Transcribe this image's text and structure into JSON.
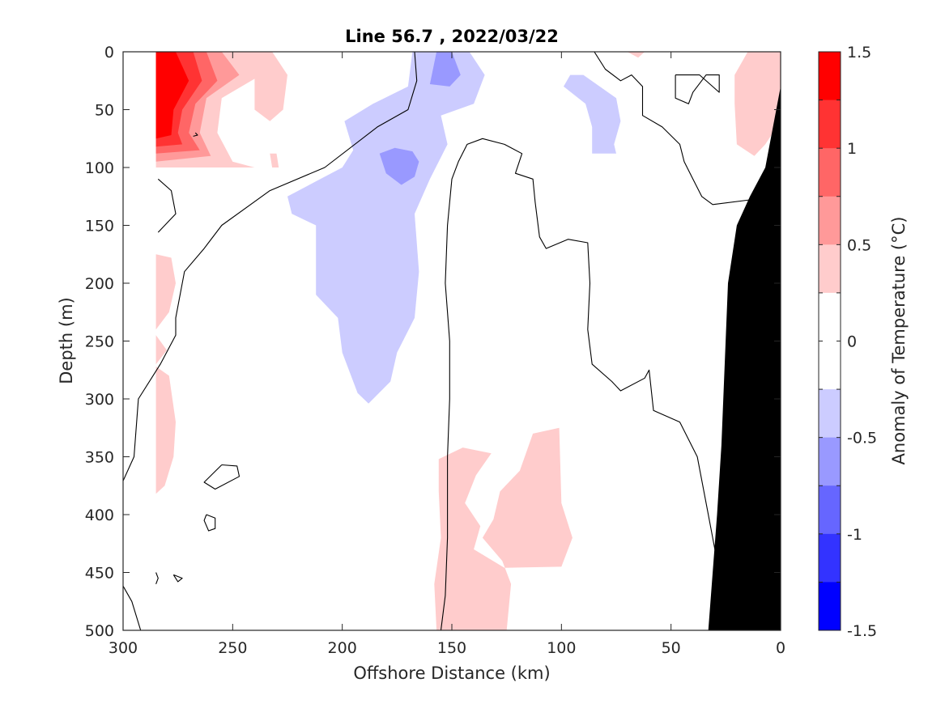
{
  "chart_data": {
    "type": "contour",
    "title": "Line 56.7 , 2022/03/22",
    "xlabel": "Offshore Distance (km)",
    "ylabel": "Depth (m)",
    "xlim": [
      300,
      0
    ],
    "ylim": [
      500,
      0
    ],
    "x_reversed": true,
    "y_reversed": true,
    "xticks": [
      300,
      250,
      200,
      150,
      100,
      50,
      0
    ],
    "yticks": [
      0,
      50,
      100,
      150,
      200,
      250,
      300,
      350,
      400,
      450,
      500
    ],
    "colorbar": {
      "label": "Anomaly of Temperature (°C)",
      "range": [
        -1.5,
        1.5
      ],
      "ticks": [
        1.5,
        1,
        0.5,
        0,
        -0.5,
        -1,
        -1.5
      ],
      "levels": [
        1.5,
        1.25,
        1.0,
        0.75,
        0.5,
        0.25,
        0.0,
        -0.25,
        -0.5,
        -0.75,
        -1.0,
        -1.25,
        -1.5
      ],
      "colors": [
        "#ff0000",
        "#ff3333",
        "#ff6666",
        "#ff9999",
        "#ffcccc",
        "#ffffff",
        "#ffffff",
        "#ccccff",
        "#9999ff",
        "#6666ff",
        "#3333ff",
        "#0000ff"
      ]
    },
    "filled_regions": [
      {
        "name": "warm core 0-100m",
        "anomaly_min": 0.25,
        "points": [
          [
            285,
            0
          ],
          [
            240,
            0
          ],
          [
            237,
            20
          ],
          [
            255,
            40
          ],
          [
            257,
            70
          ],
          [
            250,
            95
          ],
          [
            240,
            100
          ],
          [
            285,
            100
          ]
        ]
      },
      {
        "name": "warm core 0-100m",
        "anomaly_min": 0.5,
        "points": [
          [
            285,
            0
          ],
          [
            255,
            0
          ],
          [
            247,
            20
          ],
          [
            262,
            40
          ],
          [
            265,
            70
          ],
          [
            260,
            90
          ],
          [
            285,
            95
          ]
        ]
      },
      {
        "name": "warm core 0-100m",
        "anomaly_min": 0.75,
        "points": [
          [
            285,
            0
          ],
          [
            262,
            0
          ],
          [
            257,
            25
          ],
          [
            267,
            45
          ],
          [
            270,
            70
          ],
          [
            265,
            85
          ],
          [
            285,
            88
          ]
        ]
      },
      {
        "name": "warm core 0-100m",
        "anomaly_min": 1.0,
        "points": [
          [
            285,
            0
          ],
          [
            268,
            0
          ],
          [
            264,
            25
          ],
          [
            273,
            50
          ],
          [
            275,
            70
          ],
          [
            273,
            80
          ],
          [
            285,
            82
          ]
        ]
      },
      {
        "name": "warm core 0-100m",
        "anomaly_min": 1.25,
        "points": [
          [
            285,
            0
          ],
          [
            276,
            0
          ],
          [
            270,
            25
          ],
          [
            277,
            50
          ],
          [
            278,
            72
          ],
          [
            285,
            75
          ]
        ]
      },
      {
        "name": "warm patch 0-60m",
        "anomaly_min": 0.25,
        "points": [
          [
            240,
            0
          ],
          [
            232,
            0
          ],
          [
            225,
            20
          ],
          [
            227,
            50
          ],
          [
            233,
            60
          ],
          [
            240,
            50
          ]
        ]
      },
      {
        "name": "warm patch 90m",
        "anomaly_min": 0.25,
        "points": [
          [
            233,
            88
          ],
          [
            230,
            88
          ],
          [
            229,
            100
          ],
          [
            232,
            100
          ]
        ]
      },
      {
        "name": "warm patch 0-10m",
        "anomaly_min": 0.25,
        "points": [
          [
            70,
            0
          ],
          [
            62,
            0
          ],
          [
            65,
            5
          ]
        ]
      },
      {
        "name": "warm patch near coast",
        "anomaly_min": 0.25,
        "points": [
          [
            0,
            0
          ],
          [
            15,
            0
          ],
          [
            21,
            20
          ],
          [
            21,
            45
          ],
          [
            20,
            80
          ],
          [
            12,
            90
          ],
          [
            7,
            80
          ],
          [
            0,
            60
          ]
        ]
      },
      {
        "name": "warm patch west 180-380m",
        "anomaly_min": 0.25,
        "points": [
          [
            285,
            175
          ],
          [
            278,
            178
          ],
          [
            276,
            200
          ],
          [
            279,
            225
          ],
          [
            285,
            240
          ]
        ]
      },
      {
        "name": "warm patch west 180-380m",
        "anomaly_min": 0.25,
        "points": [
          [
            285,
            245
          ],
          [
            280,
            258
          ],
          [
            285,
            270
          ]
        ]
      },
      {
        "name": "warm patch west 180-380m",
        "anomaly_min": 0.25,
        "points": [
          [
            285,
            272
          ],
          [
            279,
            280
          ],
          [
            276,
            320
          ],
          [
            277,
            350
          ],
          [
            281,
            375
          ],
          [
            285,
            382
          ]
        ]
      },
      {
        "name": "warm patch 320-500m",
        "anomaly_min": 0.25,
        "points": [
          [
            157,
            500
          ],
          [
            125,
            500
          ],
          [
            123,
            460
          ],
          [
            127,
            440
          ],
          [
            136,
            420
          ],
          [
            131,
            404
          ],
          [
            128,
            380
          ],
          [
            119,
            362
          ],
          [
            113,
            330
          ],
          [
            101,
            325
          ],
          [
            100,
            390
          ],
          [
            95,
            420
          ],
          [
            100,
            445
          ],
          [
            126,
            446
          ],
          [
            140,
            430
          ],
          [
            137,
            410
          ],
          [
            144,
            390
          ],
          [
            139,
            366
          ],
          [
            132,
            347
          ],
          [
            145,
            342
          ],
          [
            156,
            352
          ],
          [
            156,
            380
          ],
          [
            155,
            420
          ],
          [
            158,
            460
          ]
        ]
      },
      {
        "name": "cool patch 0-300m",
        "anomaly_min": -0.5,
        "anomaly_max": -0.25,
        "points": [
          [
            168,
            0
          ],
          [
            142,
            0
          ],
          [
            135,
            20
          ],
          [
            140,
            45
          ],
          [
            155,
            55
          ],
          [
            152,
            80
          ],
          [
            160,
            110
          ],
          [
            167,
            140
          ],
          [
            165,
            190
          ],
          [
            167,
            230
          ],
          [
            175,
            260
          ],
          [
            178,
            285
          ],
          [
            188,
            304
          ],
          [
            193,
            295
          ],
          [
            200,
            260
          ],
          [
            202,
            230
          ],
          [
            212,
            210
          ],
          [
            212,
            150
          ],
          [
            223,
            140
          ],
          [
            225,
            125
          ],
          [
            210,
            110
          ],
          [
            200,
            100
          ],
          [
            195,
            85
          ],
          [
            199,
            60
          ],
          [
            186,
            45
          ],
          [
            170,
            30
          ]
        ]
      },
      {
        "name": "cool patch 0-300m",
        "anomaly_min": -0.75,
        "anomaly_max": -0.5,
        "points": [
          [
            157,
            0
          ],
          [
            150,
            0
          ],
          [
            146,
            20
          ],
          [
            151,
            30
          ],
          [
            160,
            28
          ]
        ]
      },
      {
        "name": "cool patch 0-300m",
        "anomaly_min": -0.75,
        "anomaly_max": -0.5,
        "points": [
          [
            168,
            86
          ],
          [
            165,
            95
          ],
          [
            167,
            108
          ],
          [
            173,
            115
          ],
          [
            180,
            105
          ],
          [
            183,
            88
          ],
          [
            176,
            83
          ]
        ]
      },
      {
        "name": "cool patch 20-90m",
        "anomaly_min": -0.5,
        "anomaly_max": -0.25,
        "points": [
          [
            96,
            20
          ],
          [
            90,
            20
          ],
          [
            75,
            40
          ],
          [
            73,
            60
          ],
          [
            76,
            80
          ],
          [
            75,
            88
          ],
          [
            86,
            88
          ],
          [
            86,
            65
          ],
          [
            89,
            45
          ],
          [
            99,
            30
          ]
        ]
      }
    ],
    "zero_contours": [
      [
        [
          174,
          0
        ],
        [
          167,
          0
        ],
        [
          166,
          25
        ],
        [
          170,
          50
        ],
        [
          184,
          65
        ],
        [
          208,
          100
        ],
        [
          233,
          120
        ],
        [
          255,
          150
        ],
        [
          263,
          170
        ],
        [
          272,
          190
        ],
        [
          276,
          230
        ],
        [
          276,
          245
        ],
        [
          283,
          270
        ],
        [
          293,
          300
        ],
        [
          295,
          350
        ],
        [
          301,
          375
        ],
        [
          309,
          400
        ],
        [
          305,
          420
        ],
        [
          305,
          445
        ],
        [
          296,
          475
        ],
        [
          292,
          500
        ]
      ],
      [
        [
          155,
          500
        ],
        [
          153,
          470
        ],
        [
          152,
          420
        ],
        [
          152,
          380
        ],
        [
          152,
          350
        ],
        [
          151,
          300
        ],
        [
          151,
          250
        ],
        [
          153,
          200
        ],
        [
          152,
          150
        ],
        [
          150,
          110
        ],
        [
          147,
          95
        ],
        [
          143,
          80
        ],
        [
          136,
          75
        ],
        [
          126,
          80
        ],
        [
          118,
          88
        ],
        [
          121,
          105
        ],
        [
          113,
          110
        ],
        [
          112,
          130
        ],
        [
          110,
          160
        ],
        [
          107,
          170
        ],
        [
          97,
          162
        ],
        [
          88,
          165
        ],
        [
          87,
          200
        ],
        [
          88,
          240
        ],
        [
          86,
          270
        ],
        [
          77,
          285
        ],
        [
          73,
          293
        ],
        [
          62,
          282
        ],
        [
          60,
          275
        ],
        [
          58,
          310
        ],
        [
          46,
          320
        ],
        [
          38,
          350
        ],
        [
          33,
          400
        ],
        [
          28,
          450
        ],
        [
          26,
          500
        ]
      ],
      [
        [
          85,
          0
        ],
        [
          80,
          15
        ],
        [
          73,
          25
        ],
        [
          68,
          20
        ],
        [
          63,
          30
        ],
        [
          63,
          55
        ],
        [
          54,
          65
        ],
        [
          46,
          80
        ],
        [
          44,
          95
        ],
        [
          40,
          110
        ],
        [
          36,
          125
        ],
        [
          31,
          132
        ],
        [
          14,
          128
        ]
      ],
      [
        [
          48,
          20
        ],
        [
          48,
          40
        ],
        [
          42,
          45
        ],
        [
          40,
          35
        ],
        [
          34,
          20
        ],
        [
          28,
          20
        ],
        [
          28,
          35
        ],
        [
          37,
          20
        ],
        [
          48,
          20
        ]
      ],
      [
        [
          284,
          110
        ],
        [
          278,
          120
        ],
        [
          276,
          140
        ],
        [
          284,
          156
        ]
      ],
      [
        [
          285,
          450
        ],
        [
          284,
          455
        ],
        [
          285,
          460
        ]
      ],
      [
        [
          277,
          452
        ],
        [
          273,
          455
        ],
        [
          275,
          458
        ],
        [
          277,
          452
        ]
      ],
      [
        [
          262,
          400
        ],
        [
          258,
          403
        ],
        [
          258,
          412
        ],
        [
          261,
          414
        ],
        [
          263,
          405
        ],
        [
          262,
          400
        ]
      ],
      [
        [
          255,
          357
        ],
        [
          248,
          358
        ],
        [
          247,
          367
        ],
        [
          258,
          378
        ],
        [
          263,
          372
        ],
        [
          255,
          357
        ]
      ],
      [
        [
          267,
          70
        ],
        [
          266,
          72
        ],
        [
          268,
          73
        ]
      ],
      [
        [
          12,
          190
        ],
        [
          10,
          200
        ],
        [
          11,
          225
        ],
        [
          14,
          230
        ]
      ]
    ],
    "land_mask": {
      "color": "#000000",
      "points": [
        [
          33,
          500
        ],
        [
          29,
          400
        ],
        [
          27,
          340
        ],
        [
          24,
          200
        ],
        [
          20,
          150
        ],
        [
          14,
          125
        ],
        [
          7,
          100
        ],
        [
          0,
          30
        ],
        [
          0,
          500
        ]
      ]
    },
    "data_extent_west_km": 285
  }
}
